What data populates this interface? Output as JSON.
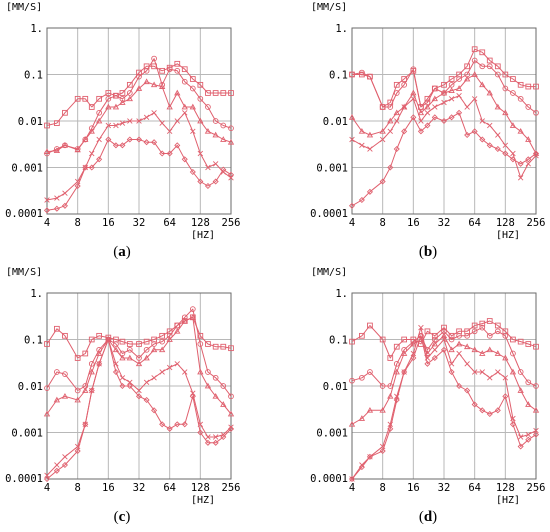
{
  "colors": {
    "series": "#e0606e",
    "grid": "#b8b8b8",
    "frame": "#6a6a6a"
  },
  "chart_data": [
    {
      "type": "line",
      "caption": {
        "open": "(",
        "letter": "a",
        "close": ")"
      },
      "ylabel": "[MM/S]",
      "xlabel": "[HZ]",
      "x_scale": "log2",
      "y_scale": "log10",
      "xlim": [
        4,
        256
      ],
      "ylim": [
        0.0001,
        1
      ],
      "x_ticks": [
        "4",
        "8",
        "16",
        "32",
        "64",
        "128",
        "256"
      ],
      "y_ticks": [
        "1.",
        "0.1",
        "0.01",
        "0.001",
        "0.0001"
      ],
      "grid": true,
      "x": [
        4,
        5,
        6,
        8,
        9.5,
        11,
        13,
        16,
        19,
        22,
        26,
        32,
        38,
        45,
        54,
        64,
        76,
        90,
        108,
        128,
        152,
        181,
        215,
        256
      ],
      "series": [
        {
          "marker": "square",
          "values": [
            0.008,
            0.009,
            0.015,
            0.03,
            0.03,
            0.02,
            0.03,
            0.04,
            0.035,
            0.04,
            0.06,
            0.11,
            0.15,
            0.15,
            0.12,
            0.14,
            0.17,
            0.13,
            0.08,
            0.06,
            0.04,
            0.04,
            0.04,
            0.04
          ]
        },
        {
          "marker": "circle",
          "values": [
            0.002,
            0.0025,
            0.003,
            0.0025,
            0.004,
            0.007,
            0.015,
            0.03,
            0.035,
            0.03,
            0.04,
            0.09,
            0.12,
            0.22,
            0.06,
            0.13,
            0.12,
            0.07,
            0.05,
            0.03,
            0.02,
            0.01,
            0.008,
            0.007
          ]
        },
        {
          "marker": "triangle",
          "values": [
            0.0022,
            0.0023,
            0.003,
            0.0024,
            0.004,
            0.006,
            0.01,
            0.02,
            0.02,
            0.025,
            0.03,
            0.05,
            0.07,
            0.06,
            0.055,
            0.02,
            0.04,
            0.02,
            0.02,
            0.01,
            0.006,
            0.005,
            0.004,
            0.0035
          ]
        },
        {
          "marker": "cross",
          "values": [
            0.0002,
            0.00022,
            0.00028,
            0.0005,
            0.001,
            0.002,
            0.004,
            0.008,
            0.008,
            0.009,
            0.01,
            0.01,
            0.012,
            0.015,
            0.009,
            0.006,
            0.01,
            0.015,
            0.006,
            0.002,
            0.001,
            0.0012,
            0.0008,
            0.0006
          ]
        },
        {
          "marker": "diamond",
          "values": [
            0.00012,
            0.00013,
            0.00015,
            0.0004,
            0.001,
            0.001,
            0.0015,
            0.004,
            0.003,
            0.003,
            0.004,
            0.004,
            0.0035,
            0.0035,
            0.002,
            0.002,
            0.003,
            0.0015,
            0.0008,
            0.0005,
            0.0004,
            0.0005,
            0.0009,
            0.0007
          ]
        }
      ]
    },
    {
      "type": "line",
      "caption": {
        "open": "(",
        "letter": "b",
        "close": ")"
      },
      "ylabel": "[MM/S]",
      "xlabel": "[HZ]",
      "x_scale": "log2",
      "y_scale": "log10",
      "xlim": [
        4,
        256
      ],
      "ylim": [
        0.0001,
        1
      ],
      "x_ticks": [
        "4",
        "8",
        "16",
        "32",
        "64",
        "128",
        "256"
      ],
      "y_ticks": [
        "1.",
        "0.1",
        "0.01",
        "0.001",
        "0.0001"
      ],
      "grid": true,
      "x": [
        4,
        5,
        6,
        8,
        9.5,
        11,
        13,
        16,
        19,
        22,
        26,
        32,
        38,
        45,
        54,
        64,
        76,
        90,
        108,
        128,
        152,
        181,
        215,
        256
      ],
      "series": [
        {
          "marker": "square",
          "values": [
            0.1,
            0.1,
            0.09,
            0.02,
            0.025,
            0.06,
            0.08,
            0.12,
            0.02,
            0.03,
            0.05,
            0.06,
            0.08,
            0.1,
            0.15,
            0.35,
            0.3,
            0.2,
            0.15,
            0.1,
            0.08,
            0.06,
            0.055,
            0.055
          ]
        },
        {
          "marker": "circle",
          "values": [
            0.1,
            0.11,
            0.09,
            0.02,
            0.02,
            0.04,
            0.06,
            0.13,
            0.02,
            0.025,
            0.05,
            0.04,
            0.06,
            0.08,
            0.1,
            0.2,
            0.15,
            0.15,
            0.1,
            0.05,
            0.04,
            0.03,
            0.02,
            0.015
          ]
        },
        {
          "marker": "triangle",
          "values": [
            0.012,
            0.006,
            0.005,
            0.006,
            0.01,
            0.015,
            0.02,
            0.04,
            0.015,
            0.02,
            0.03,
            0.04,
            0.045,
            0.05,
            0.08,
            0.1,
            0.06,
            0.04,
            0.02,
            0.015,
            0.008,
            0.006,
            0.004,
            0.002
          ]
        },
        {
          "marker": "cross",
          "values": [
            0.004,
            0.003,
            0.0025,
            0.004,
            0.006,
            0.01,
            0.02,
            0.03,
            0.01,
            0.015,
            0.02,
            0.025,
            0.03,
            0.035,
            0.02,
            0.03,
            0.01,
            0.008,
            0.005,
            0.003,
            0.002,
            0.0006,
            0.0012,
            0.0018
          ]
        },
        {
          "marker": "diamond",
          "values": [
            0.00015,
            0.0002,
            0.0003,
            0.0005,
            0.001,
            0.0025,
            0.006,
            0.012,
            0.006,
            0.008,
            0.012,
            0.01,
            0.012,
            0.015,
            0.005,
            0.006,
            0.004,
            0.003,
            0.0025,
            0.002,
            0.0015,
            0.0012,
            0.0015,
            0.002
          ]
        }
      ]
    },
    {
      "type": "line",
      "caption": {
        "open": "(",
        "letter": "c",
        "close": ")"
      },
      "ylabel": "[MM/S]",
      "xlabel": "[HZ]",
      "x_scale": "log2",
      "y_scale": "log10",
      "xlim": [
        4,
        256
      ],
      "ylim": [
        0.0001,
        1
      ],
      "x_ticks": [
        "4",
        "8",
        "16",
        "32",
        "64",
        "128",
        "256"
      ],
      "y_ticks": [
        "1.",
        "0.1",
        "0.01",
        "0.001",
        "0.0001"
      ],
      "grid": true,
      "x": [
        4,
        5,
        6,
        8,
        9.5,
        11,
        13,
        16,
        19,
        22,
        26,
        32,
        38,
        45,
        54,
        64,
        76,
        90,
        108,
        128,
        152,
        181,
        215,
        256
      ],
      "series": [
        {
          "marker": "square",
          "values": [
            0.08,
            0.17,
            0.12,
            0.04,
            0.05,
            0.1,
            0.12,
            0.11,
            0.1,
            0.09,
            0.08,
            0.08,
            0.09,
            0.1,
            0.12,
            0.15,
            0.2,
            0.25,
            0.3,
            0.12,
            0.08,
            0.07,
            0.07,
            0.065
          ]
        },
        {
          "marker": "circle",
          "values": [
            0.009,
            0.02,
            0.018,
            0.008,
            0.01,
            0.03,
            0.06,
            0.1,
            0.08,
            0.05,
            0.06,
            0.04,
            0.06,
            0.08,
            0.09,
            0.12,
            0.2,
            0.3,
            0.45,
            0.08,
            0.02,
            0.015,
            0.01,
            0.006
          ]
        },
        {
          "marker": "triangle",
          "values": [
            0.0025,
            0.005,
            0.006,
            0.005,
            0.008,
            0.02,
            0.05,
            0.1,
            0.06,
            0.04,
            0.04,
            0.03,
            0.04,
            0.06,
            0.06,
            0.1,
            0.15,
            0.25,
            0.3,
            0.02,
            0.01,
            0.006,
            0.004,
            0.0025
          ]
        },
        {
          "marker": "cross",
          "values": [
            0.00012,
            0.0002,
            0.0003,
            0.0005,
            0.0015,
            0.008,
            0.03,
            0.1,
            0.03,
            0.015,
            0.012,
            0.008,
            0.012,
            0.015,
            0.02,
            0.025,
            0.03,
            0.02,
            0.007,
            0.0015,
            0.0008,
            0.0008,
            0.0009,
            0.0013
          ]
        },
        {
          "marker": "diamond",
          "values": [
            0.0001,
            0.00015,
            0.0002,
            0.0004,
            0.0015,
            0.008,
            0.03,
            0.1,
            0.02,
            0.01,
            0.01,
            0.006,
            0.005,
            0.003,
            0.0015,
            0.0012,
            0.0015,
            0.0015,
            0.006,
            0.001,
            0.0006,
            0.0006,
            0.0008,
            0.0012
          ]
        }
      ]
    },
    {
      "type": "line",
      "caption": {
        "open": "(",
        "letter": "d",
        "close": ")"
      },
      "ylabel": "[MM/S]",
      "xlabel": "[HZ]",
      "x_scale": "log2",
      "y_scale": "log10",
      "xlim": [
        4,
        256
      ],
      "ylim": [
        0.0001,
        1
      ],
      "x_ticks": [
        "4",
        "8",
        "16",
        "32",
        "64",
        "128",
        "256"
      ],
      "y_ticks": [
        "1.",
        "0.1",
        "0.01",
        "0.001",
        "0.0001"
      ],
      "grid": true,
      "x": [
        4,
        5,
        6,
        8,
        9.5,
        11,
        13,
        16,
        19,
        22,
        26,
        32,
        38,
        45,
        54,
        64,
        76,
        90,
        108,
        128,
        152,
        181,
        215,
        256
      ],
      "series": [
        {
          "marker": "square",
          "values": [
            0.09,
            0.12,
            0.2,
            0.1,
            0.04,
            0.07,
            0.1,
            0.1,
            0.08,
            0.15,
            0.12,
            0.18,
            0.12,
            0.15,
            0.15,
            0.2,
            0.22,
            0.25,
            0.2,
            0.15,
            0.1,
            0.09,
            0.08,
            0.07
          ]
        },
        {
          "marker": "circle",
          "values": [
            0.013,
            0.015,
            0.02,
            0.01,
            0.01,
            0.03,
            0.06,
            0.09,
            0.12,
            0.06,
            0.1,
            0.15,
            0.1,
            0.12,
            0.12,
            0.15,
            0.18,
            0.12,
            0.15,
            0.12,
            0.05,
            0.02,
            0.012,
            0.01
          ]
        },
        {
          "marker": "triangle",
          "values": [
            0.0015,
            0.002,
            0.003,
            0.003,
            0.006,
            0.02,
            0.05,
            0.08,
            0.1,
            0.05,
            0.08,
            0.12,
            0.06,
            0.08,
            0.07,
            0.06,
            0.05,
            0.06,
            0.05,
            0.04,
            0.02,
            0.008,
            0.004,
            0.003
          ]
        },
        {
          "marker": "cross",
          "values": [
            0.0001,
            0.0002,
            0.0003,
            0.0005,
            0.0015,
            0.006,
            0.02,
            0.05,
            0.18,
            0.04,
            0.06,
            0.1,
            0.03,
            0.05,
            0.03,
            0.02,
            0.02,
            0.015,
            0.02,
            0.015,
            0.002,
            0.0008,
            0.0009,
            0.0011
          ]
        },
        {
          "marker": "diamond",
          "values": [
            0.0001,
            0.00018,
            0.0003,
            0.0004,
            0.0012,
            0.005,
            0.02,
            0.04,
            0.12,
            0.03,
            0.04,
            0.06,
            0.02,
            0.01,
            0.008,
            0.004,
            0.003,
            0.0025,
            0.003,
            0.006,
            0.0015,
            0.0005,
            0.0007,
            0.0009
          ]
        }
      ]
    }
  ]
}
